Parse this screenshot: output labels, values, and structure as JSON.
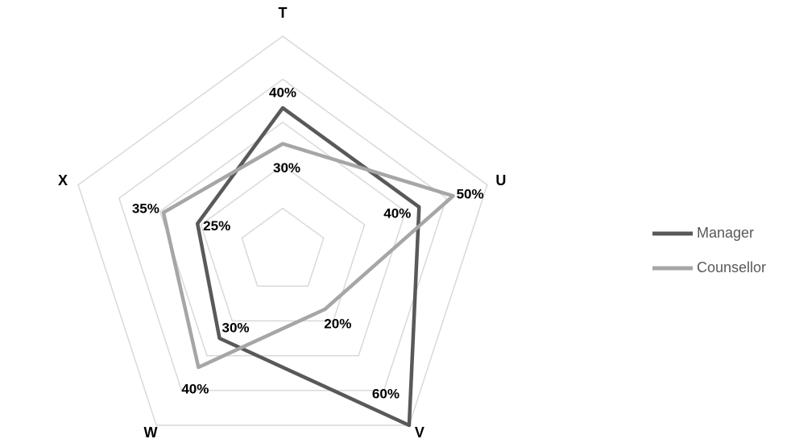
{
  "chart_data": {
    "type": "radar",
    "categories": [
      "T",
      "U",
      "V",
      "W",
      "X"
    ],
    "rlim": [
      0,
      60
    ],
    "rticks": [
      12,
      24,
      36,
      48,
      60
    ],
    "grid": true,
    "legend": "right",
    "series": [
      {
        "name": "Manager",
        "color": "#595959",
        "values": [
          40,
          40,
          60,
          30,
          25
        ],
        "value_labels": [
          "40%",
          "40%",
          "60%",
          "30%",
          "25%"
        ]
      },
      {
        "name": "Counsellor",
        "color": "#a6a6a6",
        "values": [
          30,
          50,
          20,
          40,
          35
        ],
        "value_labels": [
          "30%",
          "50%",
          "20%",
          "40%",
          "35%"
        ]
      }
    ]
  }
}
